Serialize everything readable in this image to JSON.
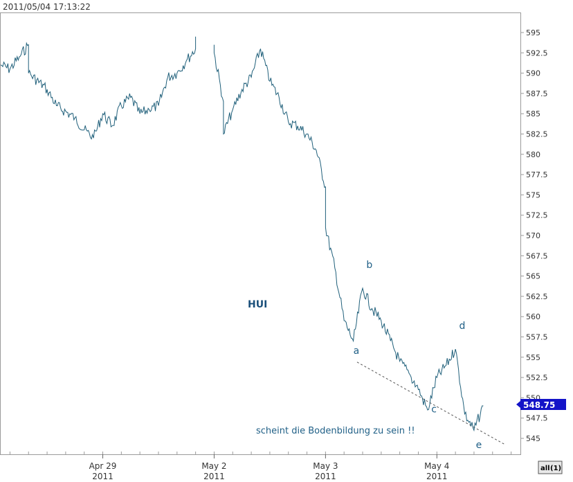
{
  "header": {
    "timestamp": "2011/05/04 17:13:22"
  },
  "controls": {
    "zoom_label": "all",
    "zoom_count": "(1)"
  },
  "chart_data": {
    "type": "line",
    "symbol": "HUI",
    "annotation": "scheint die Bodenbildung zu sein !!",
    "last_price": "548.75",
    "ylim": [
      543,
      597
    ],
    "y_ticks": [
      "595",
      "592.5",
      "590",
      "587.5",
      "585",
      "582.5",
      "580",
      "577.5",
      "575",
      "572.5",
      "570",
      "567.5",
      "565",
      "562.5",
      "560",
      "557.5",
      "555",
      "552.5",
      "550",
      "547.5",
      "545"
    ],
    "x_ticks": [
      {
        "date": "Apr 29",
        "year": "2011",
        "t": 5.5
      },
      {
        "date": "May 2",
        "year": "2011",
        "t": 11.5
      },
      {
        "date": "May 3",
        "year": "2011",
        "t": 17.5
      },
      {
        "date": "May 4",
        "year": "2011",
        "t": 23.5
      }
    ],
    "series": [
      {
        "x": [
          0,
          0.5,
          1,
          1.5,
          1.5,
          2.5,
          3,
          4,
          4.5,
          5,
          5.5,
          6,
          6.5,
          7,
          7.5,
          8,
          8.5,
          9,
          9.5,
          10,
          10.5,
          10.5,
          11.5,
          11.5,
          12,
          12,
          12.5,
          13,
          13.5,
          14,
          14.5,
          15,
          15.5,
          16,
          16.5,
          17,
          17.5,
          17.5,
          18,
          18.5,
          19,
          19.5,
          20,
          20.5,
          21,
          21.5,
          22,
          22.5,
          23,
          23.5,
          24,
          24.5,
          25,
          25.5,
          26
        ],
        "y": [
          591.0,
          590.5,
          592.0,
          593.5,
          590.0,
          588.0,
          586.0,
          584.5,
          583.0,
          582.0,
          585.0,
          583.5,
          586.0,
          587.0,
          585.0,
          585.5,
          586.0,
          589.5,
          590.0,
          591.5,
          593.0,
          594.5,
          593.5,
          592.5,
          586.5,
          582.5,
          585.5,
          588.0,
          589.5,
          593.0,
          589.0,
          587.0,
          584.0,
          583.5,
          582.5,
          580.5,
          576.0,
          571.0,
          566.0,
          559.5,
          557.0,
          563.5,
          561.0,
          559.5,
          557.0,
          554.5,
          553.0,
          551.0,
          548.5,
          552.5,
          554.0,
          556.0,
          548.0,
          546.0,
          549.0
        ]
      }
    ],
    "wave_labels": [
      {
        "label": "a",
        "t": 19.0,
        "v": 555.4
      },
      {
        "label": "b",
        "t": 19.7,
        "v": 566.0
      },
      {
        "label": "c",
        "t": 23.2,
        "v": 548.2
      },
      {
        "label": "d",
        "t": 24.7,
        "v": 558.5
      },
      {
        "label": "e",
        "t": 25.6,
        "v": 543.8
      }
    ],
    "trendline": {
      "t": [
        19.2,
        27.2
      ],
      "v": [
        554.4,
        544.2
      ]
    },
    "grid": false,
    "colors": {
      "line": "#1f5f7a",
      "price_tag": "#1414c8",
      "axis": "#9a9a9a",
      "label": "#1f5f86"
    }
  }
}
